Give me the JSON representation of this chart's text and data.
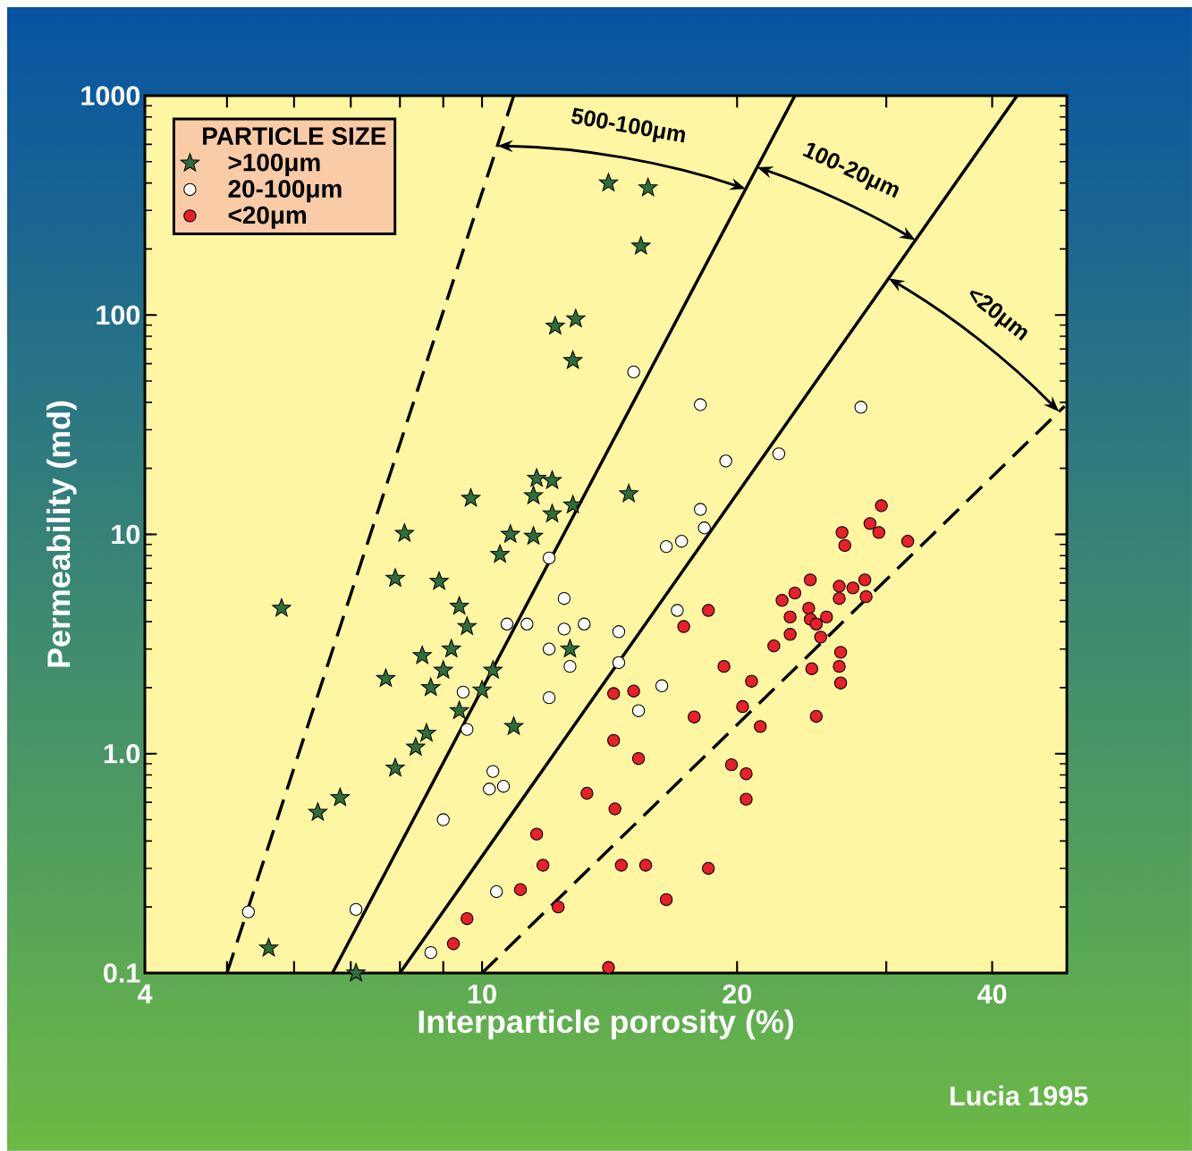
{
  "chart_data": {
    "type": "scatter",
    "xlabel": "Interparticle porosity (%)",
    "ylabel": "Permeability (md)",
    "legend_title": "PARTICLE SIZE",
    "legend": "top left",
    "log": "xy",
    "xlim": [
      4,
      49
    ],
    "ylim": [
      0.1,
      1000
    ],
    "xticks": [
      4,
      {
        "value": 5,
        "label": null
      },
      {
        "value": 6,
        "label": null
      },
      {
        "value": 7,
        "label": null
      },
      {
        "value": 8,
        "label": null
      },
      {
        "value": 9,
        "label": null
      },
      10,
      20,
      {
        "value": 30,
        "label": null
      },
      40
    ],
    "yticks": [
      0.1,
      {
        "value": 1,
        "label": "1.0"
      },
      10,
      100,
      1000
    ],
    "annotations": [
      "500-100μm",
      "100-20μm",
      "<20μm",
      "Lucia 1995"
    ],
    "series": [
      {
        "name": ">100μm",
        "color": "#2f6e3c",
        "marker": "star",
        "x": [
          5.8,
          5.6,
          6.4,
          6.8,
          7.1,
          7.7,
          7.9,
          7.9,
          8.1,
          8.35,
          8.5,
          8.6,
          8.7,
          8.9,
          9.0,
          9.2,
          9.4,
          9.4,
          9.6,
          9.7,
          10.0,
          10.3,
          10.5,
          10.8,
          10.9,
          11.5,
          11.5,
          11.6,
          12.1,
          12.1,
          12.2,
          12.7,
          12.8,
          12.8,
          12.9,
          14.1,
          14.9,
          15.7,
          15.4
        ],
        "values": [
          4.6,
          0.13,
          0.54,
          0.63,
          0.1,
          2.2,
          6.3,
          0.86,
          10.1,
          1.07,
          2.8,
          1.24,
          2.0,
          6.1,
          2.4,
          3.0,
          1.57,
          4.7,
          3.8,
          14.6,
          1.95,
          2.4,
          8.1,
          10.0,
          1.33,
          9.8,
          15.0,
          18,
          17.6,
          12.4,
          89,
          3.0,
          13.6,
          62,
          96,
          400,
          15.3,
          380,
          206
        ]
      },
      {
        "name": "20-100μm",
        "color": "#ffffff",
        "marker": "circle",
        "x": [
          5.3,
          7.1,
          8.7,
          9.0,
          9.5,
          9.6,
          10.3,
          10.2,
          10.6,
          10.7,
          11.3,
          12.0,
          12.0,
          12.0,
          12.5,
          12.5,
          12.7,
          13.2,
          14.5,
          14.5,
          15.1,
          15.3,
          16.3,
          16.5,
          17.0,
          17.2,
          18.1,
          18.1,
          18.3,
          19.4,
          22.4,
          28.0,
          10.4
        ],
        "values": [
          0.19,
          0.195,
          0.124,
          0.5,
          1.91,
          1.29,
          0.83,
          0.69,
          0.71,
          3.9,
          3.9,
          7.8,
          3.0,
          1.8,
          3.7,
          5.1,
          2.5,
          3.9,
          3.6,
          2.6,
          55,
          1.57,
          2.04,
          8.8,
          4.5,
          9.3,
          13,
          39,
          10.7,
          21.6,
          23.3,
          38,
          0.235
        ]
      },
      {
        "name": "<20μm",
        "color": "#e8202a",
        "marker": "circle",
        "x": [
          9.25,
          9.6,
          11.6,
          11.8,
          11.1,
          12.3,
          13.3,
          14.1,
          14.35,
          14.3,
          14.3,
          14.6,
          15.1,
          15.3,
          15.6,
          16.5,
          17.3,
          17.8,
          18.5,
          18.5,
          19.3,
          19.7,
          20.3,
          20.5,
          20.5,
          20.8,
          21.3,
          22.1,
          22.6,
          23.1,
          23.1,
          23.4,
          24.3,
          24.4,
          24.4,
          24.5,
          24.8,
          25.1,
          24.8,
          25.5,
          26.4,
          26.4,
          26.4,
          26.5,
          26.5,
          26.6,
          26.8,
          27.4,
          28.3,
          28.4,
          28.7,
          29.4,
          29.6,
          31.8
        ],
        "values": [
          0.136,
          0.177,
          0.43,
          0.31,
          0.24,
          0.2,
          0.66,
          0.106,
          0.56,
          1.15,
          1.88,
          0.31,
          1.93,
          0.95,
          0.31,
          0.216,
          3.8,
          1.47,
          4.5,
          0.3,
          2.5,
          0.89,
          1.64,
          0.81,
          0.62,
          2.14,
          1.33,
          3.1,
          5.0,
          3.5,
          4.2,
          5.4,
          4.6,
          6.2,
          4.1,
          2.44,
          3.9,
          3.4,
          1.48,
          4.2,
          5.8,
          5.1,
          2.5,
          2.1,
          2.9,
          10.2,
          8.9,
          5.7,
          6.2,
          5.2,
          11.2,
          10.2,
          13.5,
          9.3
        ]
      },
      {
        "type": "line",
        "color": "#000000",
        "line_style": "dashed",
        "x": [
          5.0,
          10.9
        ],
        "values": [
          0.1,
          1000
        ]
      },
      {
        "type": "line",
        "color": "#000000",
        "line_style": "solid",
        "x": [
          6.66,
          23.4
        ],
        "values": [
          0.1,
          1000
        ]
      },
      {
        "type": "line",
        "color": "#000000",
        "line_style": "solid",
        "x": [
          8.0,
          42.8
        ],
        "values": [
          0.1,
          1000
        ]
      },
      {
        "type": "line",
        "color": "#000000",
        "line_style": "dashed",
        "x": [
          10.0,
          48.7
        ],
        "values": [
          0.1,
          38.4
        ]
      }
    ]
  }
}
